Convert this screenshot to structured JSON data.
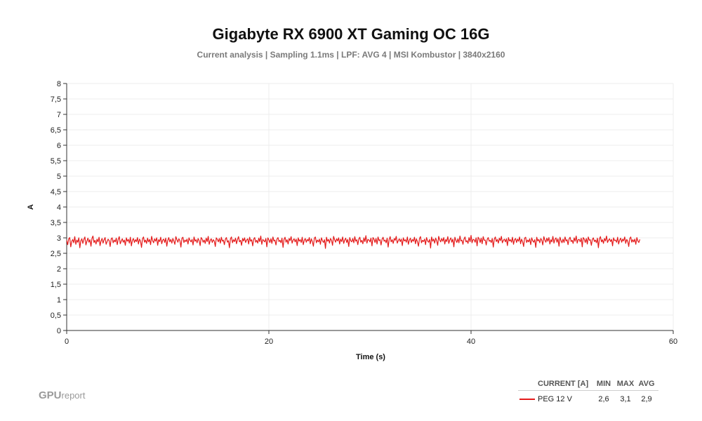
{
  "chart_data": {
    "type": "line",
    "title": "Gigabyte RX 6900 XT Gaming OC 16G",
    "subtitle": "Current analysis | Sampling 1.1ms | LPF: AVG 4 |  MSI Kombustor | 3840x2160",
    "xlabel": "Time (s)",
    "ylabel": "A",
    "xlim": [
      0,
      60
    ],
    "ylim": [
      0,
      8
    ],
    "x_ticks": [
      "0",
      "20",
      "40",
      "60"
    ],
    "y_ticks": [
      "0",
      "0,5",
      "1",
      "1,5",
      "2",
      "2,5",
      "3",
      "3,5",
      "4",
      "4,5",
      "5",
      "5,5",
      "6",
      "6,5",
      "7",
      "7,5",
      "8"
    ],
    "grid": true,
    "series": [
      {
        "name": "PEG 12 V",
        "color": "#e41b1b",
        "x_start": 0,
        "x_step": 0.1,
        "values": [
          2.92,
          2.78,
          2.97,
          3.01,
          2.71,
          2.88,
          2.95,
          2.84,
          3.04,
          2.79,
          2.93,
          2.86,
          3.0,
          2.68,
          2.91,
          2.97,
          2.82,
          2.95,
          3.03,
          2.77,
          2.89,
          2.99,
          2.86,
          2.94,
          2.73,
          2.98,
          3.06,
          2.85,
          2.92,
          2.8,
          2.96,
          2.87,
          3.02,
          2.75,
          2.9,
          2.98,
          2.83,
          2.94,
          3.01,
          2.79,
          2.88,
          2.96,
          2.91,
          2.72,
          2.97,
          3.0,
          2.84,
          2.93,
          2.87,
          2.99,
          2.78,
          2.95,
          3.04,
          2.81,
          2.9,
          2.97,
          2.86,
          2.93,
          2.76,
          3.0,
          2.89,
          2.95,
          2.83,
          3.02,
          2.74,
          2.92,
          2.98,
          2.85,
          2.94,
          2.88,
          3.01,
          2.8,
          2.96,
          2.9,
          2.69,
          2.97,
          3.03,
          2.86,
          2.93,
          2.82,
          2.99,
          2.87,
          2.95,
          2.78,
          3.05,
          2.91,
          2.84,
          2.97,
          2.89,
          3.0,
          2.76,
          2.94,
          2.88,
          3.02,
          2.81,
          2.93,
          2.96,
          2.85,
          2.99,
          2.73,
          2.92,
          3.01,
          2.87,
          2.95,
          2.83,
          2.98,
          2.9,
          2.79,
          3.04,
          2.94,
          2.86,
          2.97,
          2.91,
          2.7,
          2.99,
          3.02,
          2.85,
          2.93,
          2.88,
          2.96,
          2.8,
          3.0,
          2.92,
          2.87,
          2.95,
          2.77,
          3.03,
          2.89,
          2.94,
          2.84,
          2.98,
          2.91,
          2.75,
          3.01,
          2.96,
          2.86,
          2.93,
          2.82,
          2.99,
          2.88,
          3.05,
          2.79,
          2.92,
          2.97,
          2.85,
          2.94,
          2.9,
          2.72,
          3.0,
          2.95,
          2.87,
          2.98,
          2.83,
          3.02,
          2.89,
          2.93,
          2.78,
          2.96,
          3.01,
          2.86,
          2.91,
          2.68,
          2.97,
          3.03,
          2.84,
          2.94,
          2.88,
          2.99,
          2.81,
          2.95,
          3.04,
          2.87,
          2.92,
          2.76,
          2.98,
          2.9,
          3.0,
          2.85,
          2.93,
          2.97,
          2.8,
          3.02,
          2.89,
          2.94,
          2.74,
          2.96,
          3.01,
          2.86,
          2.92,
          2.83,
          2.99,
          2.88,
          3.06,
          2.79,
          2.95,
          2.91,
          2.87,
          2.98,
          2.71,
          3.0,
          2.94,
          2.85,
          2.97,
          2.82,
          3.03,
          2.9,
          2.93,
          2.77,
          2.96,
          3.01,
          2.88,
          2.92,
          2.84,
          2.99,
          2.69,
          2.95,
          3.02,
          2.86,
          2.94,
          2.8,
          2.98,
          2.91,
          3.04,
          2.83,
          2.93,
          2.97,
          2.87,
          2.96,
          2.75,
          3.0,
          2.89,
          2.94,
          2.85,
          3.02,
          2.78,
          2.92,
          2.98,
          2.86,
          2.95,
          2.9,
          3.01,
          2.81,
          2.97,
          2.88,
          2.73,
          2.99,
          3.03,
          2.84,
          2.93,
          2.87,
          2.96,
          2.79,
          3.0,
          2.91,
          2.85,
          2.94,
          2.66,
          3.02,
          2.89,
          2.95,
          2.83,
          2.98,
          2.92,
          2.76,
          3.05,
          2.94,
          2.86,
          2.97,
          2.9,
          3.0,
          2.8,
          2.96,
          2.88,
          3.03,
          2.82,
          2.93,
          2.99,
          2.85,
          2.95,
          2.72,
          3.01,
          2.91,
          2.87,
          2.98,
          2.84,
          3.04,
          2.89,
          2.94,
          2.78,
          2.97,
          3.02,
          2.86,
          2.92,
          2.81,
          3.0,
          2.88,
          3.07,
          2.83,
          2.95,
          2.93,
          2.87,
          2.99,
          2.74,
          3.01,
          2.96,
          2.85,
          2.98,
          2.8,
          3.03,
          2.91,
          2.94,
          2.77,
          2.96,
          3.02,
          2.89,
          2.93,
          2.84,
          2.99,
          2.7,
          2.95,
          3.04,
          2.87,
          2.94,
          2.82,
          2.98,
          2.92,
          3.05,
          2.83,
          2.91,
          2.97,
          2.88,
          2.96,
          2.75,
          3.0,
          2.9,
          2.94,
          2.86,
          3.03,
          2.79,
          2.93,
          2.99,
          2.85,
          2.95,
          2.89,
          3.02,
          2.81,
          2.97,
          2.87,
          2.73,
          2.98,
          3.04,
          2.84,
          2.92,
          2.88,
          2.96,
          2.78,
          3.01,
          2.9,
          2.86,
          2.95,
          2.67,
          3.03,
          2.89,
          2.96,
          2.83,
          2.99,
          2.91,
          2.76,
          3.05,
          2.93,
          2.87,
          2.98,
          2.89,
          3.01,
          2.8,
          2.95,
          2.88,
          3.04,
          2.82,
          2.94,
          3.0,
          2.86,
          2.96,
          2.71,
          3.02,
          2.92,
          2.85,
          2.97,
          2.84,
          3.06,
          2.9,
          2.93,
          2.79,
          2.96,
          3.03,
          2.87,
          2.91,
          2.82,
          3.01,
          2.88,
          3.08,
          2.84,
          2.95,
          2.94,
          2.86,
          3.0,
          2.74,
          3.02,
          2.97,
          2.85,
          2.99,
          2.81,
          3.04,
          2.92,
          2.93,
          2.77,
          2.95,
          3.01,
          2.89,
          2.92,
          2.85,
          2.98,
          2.7,
          2.96,
          3.03,
          2.88,
          2.95,
          2.83,
          2.99,
          2.91,
          3.05,
          2.84,
          2.92,
          2.96,
          2.87,
          2.97,
          2.75,
          3.01,
          2.9,
          2.94,
          2.86,
          3.02,
          2.79,
          2.94,
          2.98,
          2.85,
          2.96,
          2.89,
          3.03,
          2.81,
          2.96,
          2.88,
          2.72,
          2.99,
          3.02,
          2.85,
          2.93,
          2.87,
          2.97,
          2.78,
          3.0,
          2.91,
          2.86,
          2.94,
          2.69,
          3.02,
          2.9,
          2.95,
          2.84,
          2.98,
          2.92,
          2.77,
          3.04,
          2.93,
          2.86,
          2.99,
          2.89,
          3.01,
          2.8,
          2.94,
          2.87,
          3.05,
          2.83,
          2.95,
          3.0,
          2.86,
          2.97,
          2.73,
          3.02,
          2.91,
          2.84,
          2.96,
          2.85,
          3.03,
          2.9,
          2.94,
          2.78,
          2.97,
          3.02,
          2.88,
          2.92,
          2.82,
          3.0,
          2.89,
          3.06,
          2.83,
          2.94,
          2.95,
          2.87,
          2.99,
          2.71,
          3.01,
          2.96,
          2.85,
          2.98,
          2.8,
          3.03,
          2.92,
          2.94,
          2.76,
          2.95,
          3.0,
          2.88,
          2.93,
          2.84,
          2.99,
          2.68,
          2.97,
          3.04,
          2.87,
          2.94,
          2.82,
          2.98,
          2.9,
          3.06,
          2.85,
          2.92,
          2.97,
          2.88,
          2.95,
          2.74,
          3.0,
          2.91,
          2.93,
          2.86,
          3.02,
          2.8,
          2.93,
          2.99,
          2.86,
          2.96,
          2.9,
          3.03,
          2.82,
          2.95,
          2.89,
          2.72,
          2.98,
          3.03,
          2.86,
          2.94,
          2.87,
          2.96,
          2.79,
          3.01,
          2.9,
          2.85,
          2.95
        ]
      }
    ],
    "legend": {
      "placement": "bottom-right",
      "headers": [
        "CURRENT [A]",
        "MIN",
        "MAX",
        "AVG"
      ],
      "rows": [
        {
          "name": "PEG 12 V",
          "min": "2,6",
          "max": "3,1",
          "avg": "2,9"
        }
      ]
    }
  },
  "branding": {
    "logo_main": "GPU",
    "logo_sub": "report"
  }
}
